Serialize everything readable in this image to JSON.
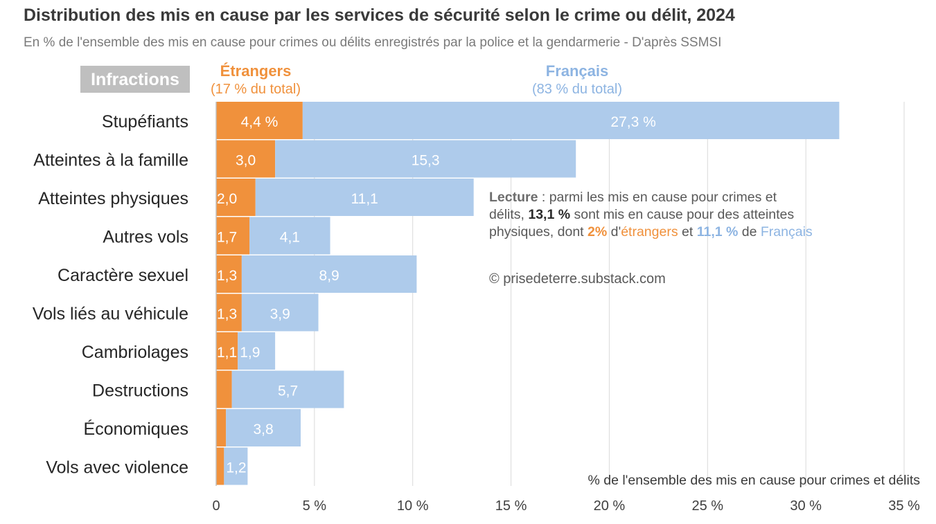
{
  "chart_data": {
    "type": "bar",
    "orientation": "horizontal",
    "stacked": true,
    "title": "Distribution des mis en cause par les services de sécurité selon le crime ou délit, 2024",
    "subtitle": "En % de l'ensemble des mis en cause pour crimes ou délits enregistrés par la police et la gendarmerie - D'après SSMSI",
    "category_header": "Infractions",
    "categories": [
      "Stupéfiants",
      "Atteintes à la famille",
      "Atteintes physiques",
      "Autres vols",
      "Caractère sexuel",
      "Vols liés au véhicule",
      "Cambriolages",
      "Destructions",
      "Économiques",
      "Vols avec violence"
    ],
    "series": [
      {
        "name": "Étrangers",
        "share": "(17 % du total)",
        "color": "#f0913c",
        "values": [
          4.4,
          3.0,
          2.0,
          1.7,
          1.3,
          1.3,
          1.1,
          0.8,
          0.5,
          0.4
        ],
        "labels": [
          "4,4 %",
          "3,0",
          "2,0",
          "1,7",
          "1,3",
          "1,3",
          "1,1",
          "",
          "",
          ""
        ]
      },
      {
        "name": "Français",
        "share": "(83 % du total)",
        "color": "#aecbeb",
        "values": [
          27.3,
          15.3,
          11.1,
          4.1,
          8.9,
          3.9,
          1.9,
          5.7,
          3.8,
          1.2
        ],
        "labels": [
          "27,3 %",
          "15,3",
          "11,1",
          "4,1",
          "8,9",
          "3,9",
          "1,9",
          "5,7",
          "3,8",
          "1,2"
        ]
      }
    ],
    "xlim": [
      0,
      35
    ],
    "xticks": [
      0,
      5,
      10,
      15,
      20,
      25,
      30,
      35
    ],
    "xtick_labels": [
      "0",
      "5 %",
      "10 %",
      "15 %",
      "20 %",
      "25 %",
      "30 %",
      "35 %"
    ],
    "xlabel": "% de l'ensemble des mis en cause pour crimes et délits",
    "grid": "vertical"
  },
  "note": {
    "lecture": "Lecture",
    "p1": " : parmi les mis en cause pour crimes et délits, ",
    "total": "13,1 %",
    "p2": " sont mis en cause pour des atteintes physiques, dont ",
    "etr_value": "2%",
    "p3": " d'",
    "etr_word": "étrangers",
    "p4": " et ",
    "fr_value": "11,1 %",
    "p5": " de ",
    "fr_word": "Français"
  },
  "copyright": "© prisedeterre.substack.com",
  "colors": {
    "etrangers": "#f0913c",
    "francais": "#aecbeb",
    "header_bg": "#bfbfbf",
    "grid": "#d9d9d9"
  }
}
